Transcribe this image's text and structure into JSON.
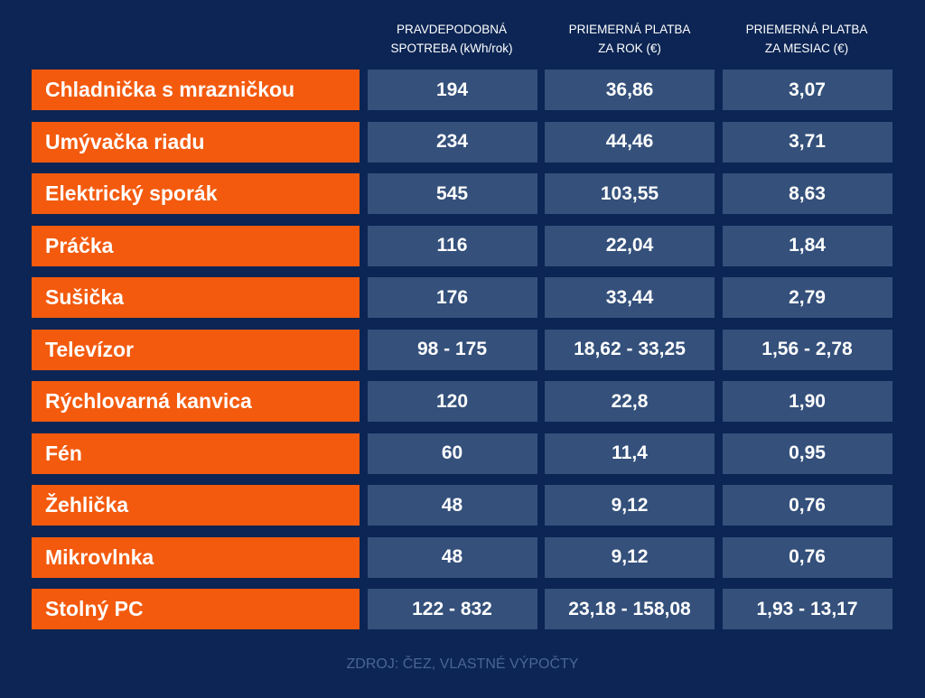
{
  "headers": [
    [
      "PRAVDEPODOBNÁ",
      "SPOTREBA (kWh/rok)"
    ],
    [
      "PRIEMERNÁ PLATBA",
      "ZA ROK (€)"
    ],
    [
      "PRIEMERNÁ PLATBA",
      "ZA MESIAC (€)"
    ]
  ],
  "rows": [
    {
      "name": "Chladnička s mrazničkou",
      "kwh": "194",
      "year": "36,86",
      "month": "3,07"
    },
    {
      "name": "Umývačka riadu",
      "kwh": "234",
      "year": "44,46",
      "month": "3,71"
    },
    {
      "name": "Elektrický sporák",
      "kwh": "545",
      "year": "103,55",
      "month": "8,63"
    },
    {
      "name": "Práčka",
      "kwh": "116",
      "year": "22,04",
      "month": "1,84"
    },
    {
      "name": "Sušička",
      "kwh": "176",
      "year": "33,44",
      "month": "2,79"
    },
    {
      "name": "Televízor",
      "kwh": "98 - 175",
      "year": "18,62 - 33,25",
      "month": "1,56 - 2,78"
    },
    {
      "name": "Rýchlovarná kanvica",
      "kwh": "120",
      "year": "22,8",
      "month": "1,90"
    },
    {
      "name": "Fén",
      "kwh": "60",
      "year": "11,4",
      "month": "0,95"
    },
    {
      "name": "Žehlička",
      "kwh": "48",
      "year": "9,12",
      "month": "0,76"
    },
    {
      "name": "Mikrovlnka",
      "kwh": "48",
      "year": "9,12",
      "month": "0,76"
    },
    {
      "name": "Stolný PC",
      "kwh": "122 - 832",
      "year": "23,18 - 158,08",
      "month": "1,93 - 13,17"
    }
  ],
  "source": "ZDROJ: ČEZ, VLASTNÉ VÝPOČTY"
}
